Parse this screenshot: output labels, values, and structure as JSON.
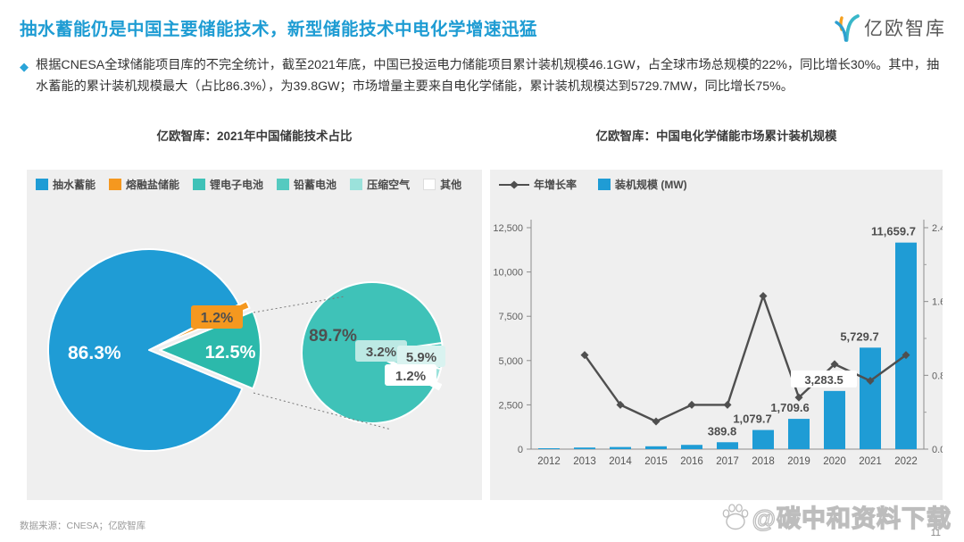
{
  "header": {
    "title": "抽水蓄能仍是中国主要储能技术，新型储能技术中电化学增速迅猛",
    "logo_text": "亿欧智库"
  },
  "summary": {
    "bullet_icon": "◆",
    "text": "根据CNESA全球储能项目库的不完全统计，截至2021年底，中国已投运电力储能项目累计装机规模46.1GW，占全球市场总规模的22%，同比增长30%。其中，抽水蓄能的累计装机规模最大（占比86.3%），为39.8GW；市场增量主要来自电化学储能，累计装机规模达到5729.7MW，同比增长75%。"
  },
  "footer": {
    "source": "数据来源：CNESA；亿欧智库",
    "watermark": "@碳中和资料下载",
    "page_number": "11"
  },
  "colors": {
    "accent_blue": "#1f9cd5",
    "orange": "#f5981f",
    "teal_main": "#2cb9ab",
    "teal_detail": "#3fc2b8",
    "teal_lead": "#55cac0",
    "teal_air": "#9be2db",
    "line_gray": "#4f4f4f",
    "panel_bg": "#efefef"
  },
  "chart_data": [
    {
      "type": "pie",
      "title": "亿欧智库：2021年中国储能技术占比",
      "legend": [
        {
          "label": "抽水蓄能",
          "color": "#1f9cd5"
        },
        {
          "label": "熔融盐储能",
          "color": "#f5981f"
        },
        {
          "label": "锂电子电池",
          "color": "#3fc2b8"
        },
        {
          "label": "铅蓄电池",
          "color": "#55cac0"
        },
        {
          "label": "压缩空气",
          "color": "#9be2db"
        },
        {
          "label": "其他",
          "color": "#ffffff"
        }
      ],
      "main_pie": {
        "slices": [
          {
            "label": "熔融盐储能",
            "value": 1.2,
            "color": "#f5981f",
            "text": "1.2%"
          },
          {
            "label": "电化学储能",
            "value": 12.5,
            "color": "#2cb9ab",
            "text": "12.5%",
            "exploded": true
          },
          {
            "label": "抽水蓄能",
            "value": 86.3,
            "color": "#1f9cd5",
            "text": "86.3%"
          }
        ]
      },
      "detail_pie": {
        "slices": [
          {
            "label": "铅蓄电池",
            "value": 5.9,
            "color": "#55cac0",
            "text": "5.9%"
          },
          {
            "label": "压缩空气",
            "value": 3.2,
            "color": "#9be2db",
            "text": "3.2%"
          },
          {
            "label": "其他",
            "value": 1.2,
            "color": "#ffffff",
            "text": "1.2%"
          },
          {
            "label": "锂电子电池",
            "value": 89.7,
            "color": "#3fc2b8",
            "text": "89.7%"
          }
        ]
      }
    },
    {
      "type": "bar+line",
      "title": "亿欧智库：中国电化学储能市场累计装机规模",
      "legend": [
        {
          "name": "年增长率",
          "type": "line",
          "color": "#4f4f4f"
        },
        {
          "name": "装机规模 (MW)",
          "type": "bar",
          "color": "#1f9cd5"
        }
      ],
      "categories": [
        "2012",
        "2013",
        "2014",
        "2015",
        "2016",
        "2017",
        "2018",
        "2019",
        "2020",
        "2021",
        "2022"
      ],
      "series": [
        {
          "name": "装机规模 (MW)",
          "type": "bar",
          "axis": "left",
          "values": [
            40,
            90,
            120,
            160,
            240,
            389.8,
            1079.7,
            1709.6,
            3283.5,
            5729.7,
            11659.7
          ],
          "labels": [
            "",
            "",
            "",
            "",
            "",
            "389.8",
            "1,079.7",
            "1,709.6",
            "3,283.5",
            "5,729.7",
            "11,659.7"
          ]
        },
        {
          "name": "年增长率",
          "type": "line",
          "axis": "right",
          "values": [
            null,
            1.02,
            0.48,
            0.3,
            0.48,
            0.48,
            1.66,
            0.56,
            0.92,
            0.74,
            1.02
          ]
        }
      ],
      "left_axis": {
        "labels": [
          "0",
          "2,500",
          "5,000",
          "7,500",
          "10,000",
          "12,500"
        ],
        "label_values": [
          0,
          2500,
          5000,
          7500,
          10000,
          12500
        ],
        "max": 12500
      },
      "right_axis": {
        "labels": [
          "0.0",
          "0.8",
          "1.6",
          "2.4"
        ],
        "label_values": [
          0,
          0.8,
          1.6,
          2.4
        ],
        "minor_ticks": [
          0.4,
          1.2,
          2.0
        ],
        "max": 2.4
      },
      "grid": false,
      "legend_position": "top-left"
    }
  ]
}
